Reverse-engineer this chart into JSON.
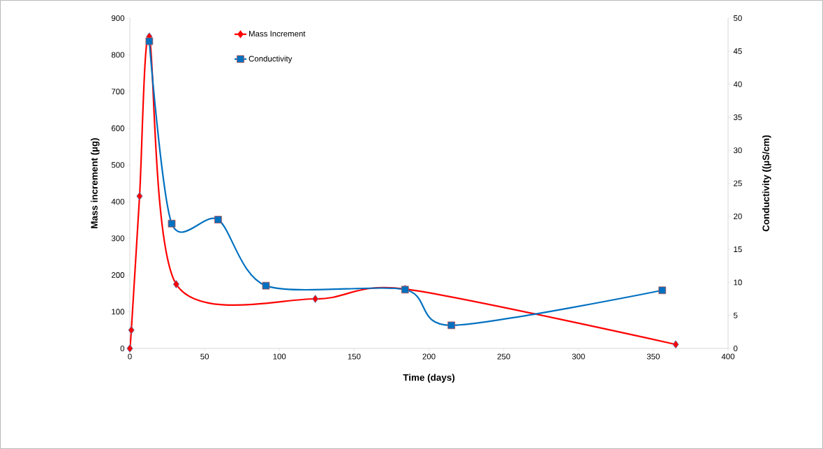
{
  "chart_data": {
    "type": "line",
    "xlabel": "Time (days)",
    "ylabel": "Mass increment (µg)",
    "y2label": "Conductivity ((µS/cm)",
    "xlim": [
      0,
      400
    ],
    "xticks": [
      0,
      50,
      100,
      150,
      200,
      250,
      300,
      350,
      400
    ],
    "ylim": [
      0,
      900
    ],
    "yticks": [
      0,
      100,
      200,
      300,
      400,
      500,
      600,
      700,
      800,
      900
    ],
    "y2lim": [
      0,
      50
    ],
    "y2ticks": [
      0,
      5,
      10,
      15,
      20,
      25,
      30,
      35,
      40,
      45,
      50
    ],
    "legend": "top left",
    "grid": false,
    "series": [
      {
        "name": "Mass Increment",
        "color": "#ff0000",
        "marker": "diamond",
        "x": [
          0,
          1,
          6.5,
          13,
          31,
          124,
          184,
          365
        ],
        "values": [
          0,
          50,
          415,
          850,
          175,
          135,
          162,
          11
        ]
      },
      {
        "name": "Conductivity",
        "color": "#0070c0",
        "marker": "square",
        "axis": "y2",
        "x": [
          13,
          28,
          59,
          91,
          184,
          215,
          356
        ],
        "values": [
          46.5,
          18.9,
          19.5,
          9.5,
          8.9,
          3.5,
          8.8
        ]
      }
    ]
  }
}
